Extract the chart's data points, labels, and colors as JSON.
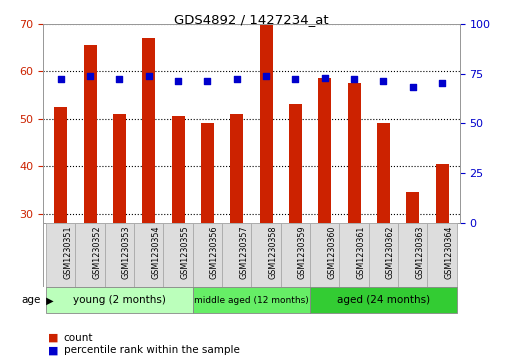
{
  "title": "GDS4892 / 1427234_at",
  "samples": [
    "GSM1230351",
    "GSM1230352",
    "GSM1230353",
    "GSM1230354",
    "GSM1230355",
    "GSM1230356",
    "GSM1230357",
    "GSM1230358",
    "GSM1230359",
    "GSM1230360",
    "GSM1230361",
    "GSM1230362",
    "GSM1230363",
    "GSM1230364"
  ],
  "counts": [
    52.5,
    65.5,
    51.0,
    67.0,
    50.5,
    49.0,
    51.0,
    70.0,
    53.0,
    58.5,
    57.5,
    49.0,
    34.5,
    40.5
  ],
  "percentiles": [
    72,
    74,
    72,
    74,
    71,
    71,
    72,
    74,
    72,
    73,
    72,
    71,
    68,
    70
  ],
  "ylim_left": [
    28,
    70
  ],
  "ylim_right": [
    0,
    100
  ],
  "yticks_left": [
    30,
    40,
    50,
    60,
    70
  ],
  "yticks_right": [
    0,
    25,
    50,
    75,
    100
  ],
  "bar_color": "#cc2200",
  "dot_color": "#0000cc",
  "bar_width": 0.45,
  "groups": [
    {
      "label": "young (2 months)",
      "start": 0,
      "end": 4,
      "color": "#bbffbb"
    },
    {
      "label": "middle aged (12 months)",
      "start": 5,
      "end": 8,
      "color": "#66ee66"
    },
    {
      "label": "aged (24 months)",
      "start": 9,
      "end": 13,
      "color": "#33cc33"
    }
  ],
  "xlabel_group": "age",
  "legend_count_label": "count",
  "legend_pct_label": "percentile rank within the sample",
  "tick_label_color_left": "#cc2200",
  "tick_label_color_right": "#0000cc",
  "cell_bg": "#dddddd",
  "cell_border": "#aaaaaa"
}
